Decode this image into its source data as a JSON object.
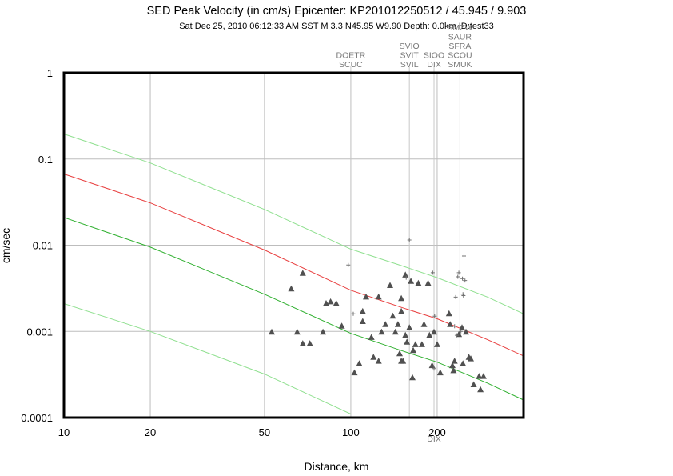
{
  "chart_data": {
    "type": "scatter",
    "title": "SED Peak Velocity (in cm/s) Epicenter: KP201012250512 / 45.945 / 9.903",
    "subtitle": "Sat Dec 25, 2010 06:12:33 AM SST   M 3.3   N45.95 W9.90   Depth: 0.0km   ID:test33",
    "xlabel": "Distance, km",
    "ylabel": "cm/sec",
    "x_scale": "log",
    "y_scale": "log",
    "xlim": [
      10,
      400
    ],
    "ylim": [
      0.0001,
      1
    ],
    "x_ticks": [
      {
        "v": 10,
        "label": "10"
      },
      {
        "v": 20,
        "label": "20"
      },
      {
        "v": 50,
        "label": "50"
      },
      {
        "v": 100,
        "label": "100"
      },
      {
        "v": 200,
        "label": "200"
      }
    ],
    "y_ticks": [
      {
        "v": 1,
        "label": "1"
      },
      {
        "v": 0.1,
        "label": "0.1"
      },
      {
        "v": 0.01,
        "label": "0.01"
      },
      {
        "v": 0.001,
        "label": "0.001"
      },
      {
        "v": 0.0001,
        "label": "0.0001"
      }
    ],
    "grid": true,
    "colors": {
      "median": "#e84040",
      "sigma": "#30b030",
      "sigma2": "#90e090",
      "triangle": "#505050",
      "plus": "#707070",
      "station_line": "#c8c8c8"
    },
    "curves": [
      {
        "role": "plus-2sigma",
        "x": [
          10,
          20,
          50,
          100,
          150,
          200,
          300,
          400
        ],
        "y": [
          0.195,
          0.09,
          0.026,
          0.009,
          0.0058,
          0.0042,
          0.0025,
          0.0016
        ]
      },
      {
        "role": "median",
        "x": [
          10,
          20,
          50,
          100,
          150,
          200,
          300,
          400
        ],
        "y": [
          0.067,
          0.031,
          0.0088,
          0.003,
          0.0019,
          0.0014,
          0.0008,
          0.00052
        ]
      },
      {
        "role": "minus-sigma",
        "x": [
          10,
          20,
          50,
          100,
          150,
          200,
          300,
          400
        ],
        "y": [
          0.021,
          0.0095,
          0.0027,
          0.00095,
          0.0006,
          0.00044,
          0.00025,
          0.00016
        ]
      },
      {
        "role": "minus-2sigma",
        "x": [
          10,
          20,
          50,
          100
        ],
        "y": [
          0.0021,
          0.001,
          0.00032,
          0.00011
        ]
      }
    ],
    "stations": [
      {
        "x": 100,
        "labels": [
          "DOETR",
          "SCUC"
        ]
      },
      {
        "x": 160,
        "labels": [
          "SVIO",
          "SVIT",
          "SVIL"
        ]
      },
      {
        "x": 195,
        "labels": [
          "SIOO",
          "DIX"
        ]
      },
      {
        "x": 240,
        "labels": [
          "SMZW",
          "SAUR",
          "SFRA",
          "SCOU",
          "SMUK"
        ]
      }
    ],
    "bottom_station_label": {
      "x": 195,
      "label": "DIX"
    },
    "triangles": [
      [
        53,
        0.00098
      ],
      [
        62,
        0.0031
      ],
      [
        65,
        0.00098
      ],
      [
        68,
        0.0047
      ],
      [
        68,
        0.00072
      ],
      [
        72,
        0.00072
      ],
      [
        80,
        0.00098
      ],
      [
        82,
        0.0021
      ],
      [
        85,
        0.0022
      ],
      [
        89,
        0.0021
      ],
      [
        93,
        0.00115
      ],
      [
        103,
        0.00033
      ],
      [
        107,
        0.00042
      ],
      [
        110,
        0.0013
      ],
      [
        110,
        0.0017
      ],
      [
        113,
        0.0025
      ],
      [
        118,
        0.00085
      ],
      [
        120,
        0.0005
      ],
      [
        125,
        0.00045
      ],
      [
        125,
        0.0025
      ],
      [
        128,
        0.00098
      ],
      [
        132,
        0.0012
      ],
      [
        137,
        0.0034
      ],
      [
        140,
        0.0015
      ],
      [
        143,
        0.00098
      ],
      [
        146,
        0.0012
      ],
      [
        148,
        0.00055
      ],
      [
        150,
        0.00045
      ],
      [
        150,
        0.0017
      ],
      [
        150,
        0.0024
      ],
      [
        152,
        0.00045
      ],
      [
        155,
        0.0045
      ],
      [
        155,
        0.0009
      ],
      [
        157,
        0.00075
      ],
      [
        160,
        0.0011
      ],
      [
        162,
        0.0038
      ],
      [
        164,
        0.00029
      ],
      [
        165,
        0.0006
      ],
      [
        168,
        0.0007
      ],
      [
        172,
        0.0036
      ],
      [
        177,
        0.0007
      ],
      [
        180,
        0.0012
      ],
      [
        186,
        0.0036
      ],
      [
        188,
        0.0009
      ],
      [
        192,
        0.0004
      ],
      [
        195,
        0.00098
      ],
      [
        200,
        0.0007
      ],
      [
        205,
        0.00033
      ],
      [
        220,
        0.0016
      ],
      [
        222,
        0.0012
      ],
      [
        226,
        0.0004
      ],
      [
        228,
        0.00035
      ],
      [
        230,
        0.00045
      ],
      [
        238,
        0.00092
      ],
      [
        244,
        0.0011
      ],
      [
        246,
        0.00042
      ],
      [
        252,
        0.00098
      ],
      [
        258,
        0.0005
      ],
      [
        262,
        0.00048
      ],
      [
        268,
        0.00024
      ],
      [
        280,
        0.0003
      ],
      [
        283,
        0.00021
      ],
      [
        290,
        0.0003
      ]
    ],
    "pluses": [
      [
        98,
        0.0059
      ],
      [
        102,
        0.0016
      ],
      [
        156,
        0.0042
      ],
      [
        160,
        0.0115
      ],
      [
        193,
        0.0048
      ],
      [
        195,
        0.00037
      ],
      [
        196,
        0.0015
      ],
      [
        230,
        0.00115
      ],
      [
        232,
        0.0025
      ],
      [
        234,
        0.0009
      ],
      [
        236,
        0.0043
      ],
      [
        238,
        0.0048
      ],
      [
        242,
        0.001
      ],
      [
        245,
        0.0041
      ],
      [
        246,
        0.0027
      ],
      [
        247,
        0.0026
      ],
      [
        248,
        0.0075
      ],
      [
        250,
        0.0039
      ]
    ]
  }
}
